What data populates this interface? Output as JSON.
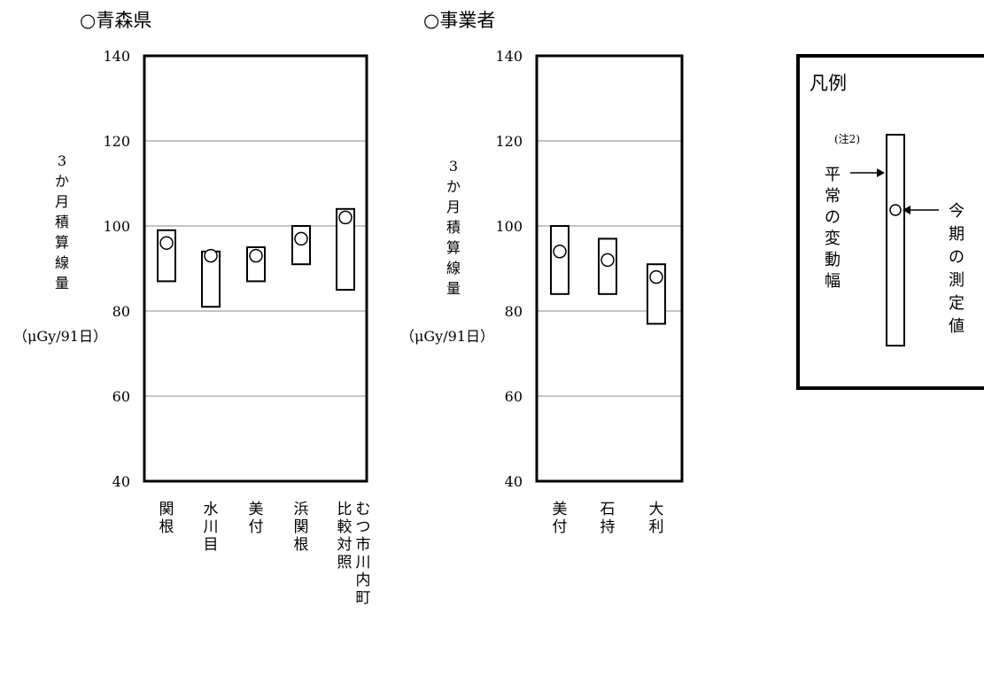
{
  "chart_data": [
    {
      "type": "range-bar",
      "title": "○青森県",
      "ylabel": "3か月積算線量",
      "yunit": "（μGy/91日）",
      "ylim": [
        40,
        140
      ],
      "yticks": [
        40,
        60,
        80,
        100,
        120,
        140
      ],
      "grid": true,
      "categories": [
        "関根",
        "水川目",
        "美付",
        "浜関根",
        "比較対照 むつ市川内町"
      ],
      "range_low": [
        87,
        81,
        87,
        91,
        85
      ],
      "range_high": [
        99,
        94,
        95,
        100,
        104
      ],
      "measured": [
        96,
        93,
        93,
        97,
        102
      ]
    },
    {
      "type": "range-bar",
      "title": "○事業者",
      "ylabel": "3か月積算線量",
      "yunit": "（μGy/91日）",
      "ylim": [
        40,
        140
      ],
      "yticks": [
        40,
        60,
        80,
        100,
        120,
        140
      ],
      "grid": true,
      "categories": [
        "美付",
        "石持",
        "大利"
      ],
      "range_low": [
        84,
        84,
        77
      ],
      "range_high": [
        100,
        97,
        91
      ],
      "measured": [
        94,
        92,
        88
      ]
    }
  ],
  "legend": {
    "title": "凡例",
    "note": "(注2)",
    "range_label": "平常の変動幅",
    "value_label": "今期の測定値"
  },
  "colors": {
    "axis": "#000000",
    "grid": "#888888",
    "background": "#ffffff"
  }
}
